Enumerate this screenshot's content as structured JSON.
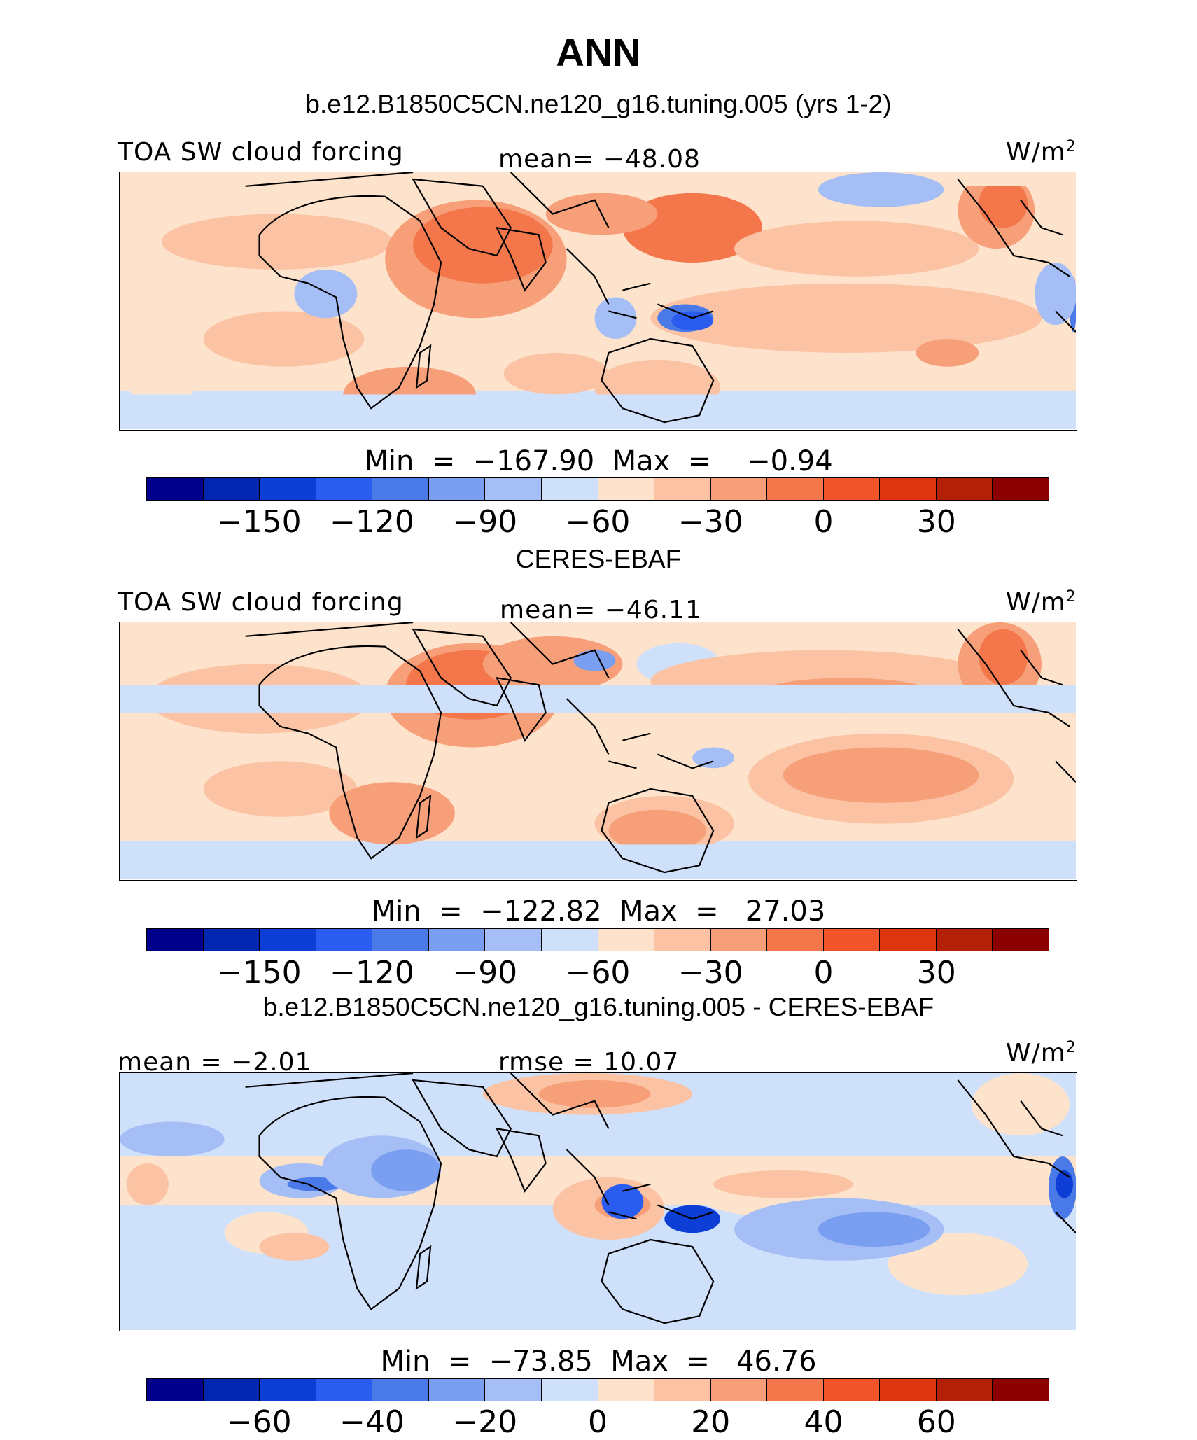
{
  "title": "ANN",
  "colors": {
    "blues": [
      "#00008b",
      "#0226b0",
      "#0d3ed6",
      "#2a5cf0",
      "#4a7ae8",
      "#7a9ef0",
      "#a5bef6",
      "#cfe0fb"
    ],
    "reds": [
      "#fde3cc",
      "#fbc3a3",
      "#f79f79",
      "#f3774a",
      "#f2542a",
      "#dd3510",
      "#b22008",
      "#8b0000"
    ],
    "land_outline": "#000000"
  },
  "panels": [
    {
      "title": "b.e12.B1850C5CN.ne120_g16.tuning.005 (yrs 1-2)",
      "left_label": "TOA SW cloud forcing",
      "center_label": "mean= −48.08",
      "units_base": "W/m",
      "units_exp": "2",
      "minmax": "Min  =  −167.90  Max  =    −0.94",
      "colorbar_ticks": [
        "−150",
        "−120",
        "−90",
        "−60",
        "−30",
        "0",
        "30"
      ],
      "field": "model"
    },
    {
      "title": "CERES-EBAF",
      "left_label": "TOA SW cloud forcing",
      "center_label": "mean= −46.11",
      "units_base": "W/m",
      "units_exp": "2",
      "minmax": "Min  =  −122.82  Max  =   27.03",
      "colorbar_ticks": [
        "−150",
        "−120",
        "−90",
        "−60",
        "−30",
        "0",
        "30"
      ],
      "field": "obs"
    },
    {
      "title": "b.e12.B1850C5CN.ne120_g16.tuning.005 - CERES-EBAF",
      "left_label": "mean =   −2.01",
      "center_label": "rmse =   10.07",
      "units_base": "W/m",
      "units_exp": "2",
      "minmax": "Min  =  −73.85  Max  =   46.76",
      "colorbar_ticks": [
        "−60",
        "−40",
        "−20",
        "0",
        "20",
        "40",
        "60"
      ],
      "field": "diff"
    }
  ]
}
